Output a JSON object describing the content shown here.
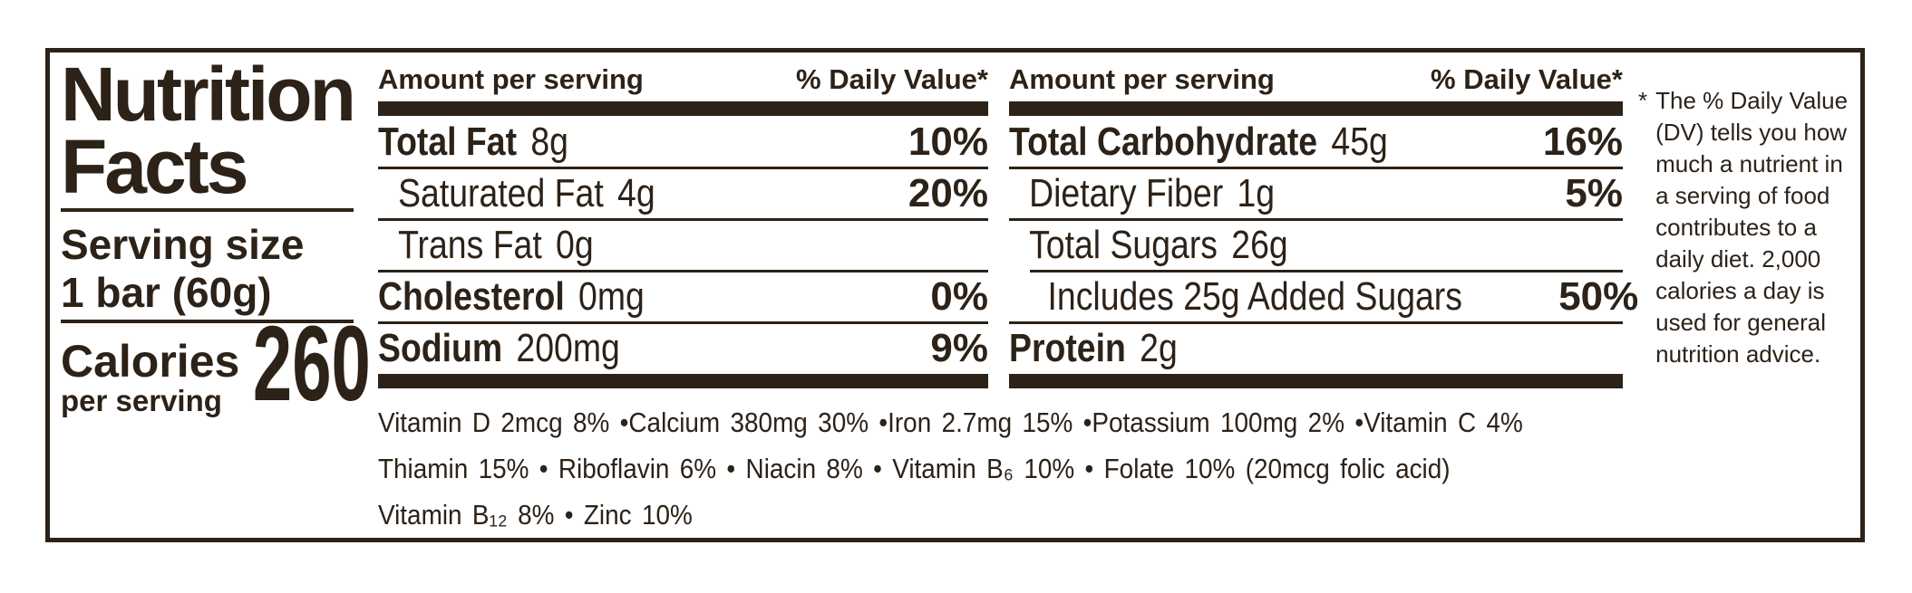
{
  "title": {
    "line1": "Nutrition",
    "line2": "Facts"
  },
  "serving": {
    "label": "Serving size",
    "size": "1 bar (60g)"
  },
  "calories": {
    "label": "Calories",
    "sublabel": "per serving",
    "value": "260"
  },
  "panel1": {
    "header": {
      "amount": "Amount per serving",
      "daily_value": "% Daily Value*"
    },
    "rows": [
      {
        "name": "Total Fat",
        "amount": "8g",
        "dv": "10%"
      },
      {
        "name": "Saturated Fat",
        "amount": "4g",
        "dv": "20%"
      },
      {
        "name": "Trans Fat",
        "amount": "0g",
        "dv": ""
      },
      {
        "name": "Cholesterol",
        "amount": "0mg",
        "dv": "0%"
      },
      {
        "name": "Sodium",
        "amount": "200mg",
        "dv": "9%"
      }
    ]
  },
  "panel2": {
    "header": {
      "amount": "Amount per serving",
      "daily_value": "% Daily Value*"
    },
    "rows": [
      {
        "name": "Total Carbohydrate",
        "amount": "45g",
        "dv": "16%"
      },
      {
        "name": "Dietary Fiber",
        "amount": "1g",
        "dv": "5%"
      },
      {
        "name": "Total Sugars",
        "amount": "26g",
        "dv": ""
      },
      {
        "name": "Includes 25g Added Sugars",
        "amount": "",
        "dv": "50%"
      },
      {
        "name": "Protein",
        "amount": "2g",
        "dv": ""
      }
    ]
  },
  "vitamins": {
    "line1": "Vitamin D 2mcg 8% •Calcium 380mg 30% •Iron 2.7mg 15% •Potassium 100mg 2% •Vitamin C 4%",
    "line2": "Thiamin 15% • Riboflavin 6% • Niacin 8% • Vitamin B₆ 10% • Folate 10% (20mcg folic acid)",
    "line3": "Vitamin B₁₂ 8% • Zinc 10%"
  },
  "footnote": {
    "marker": "*",
    "text": "The % Daily Value\n(DV) tells you how\nmuch a nutrient in\na serving of food\ncontributes to a\ndaily diet. 2,000\ncalories a day is\nused for general\nnutrition advice."
  },
  "colors": {
    "ink": "#2d2218",
    "background": "#ffffff"
  }
}
